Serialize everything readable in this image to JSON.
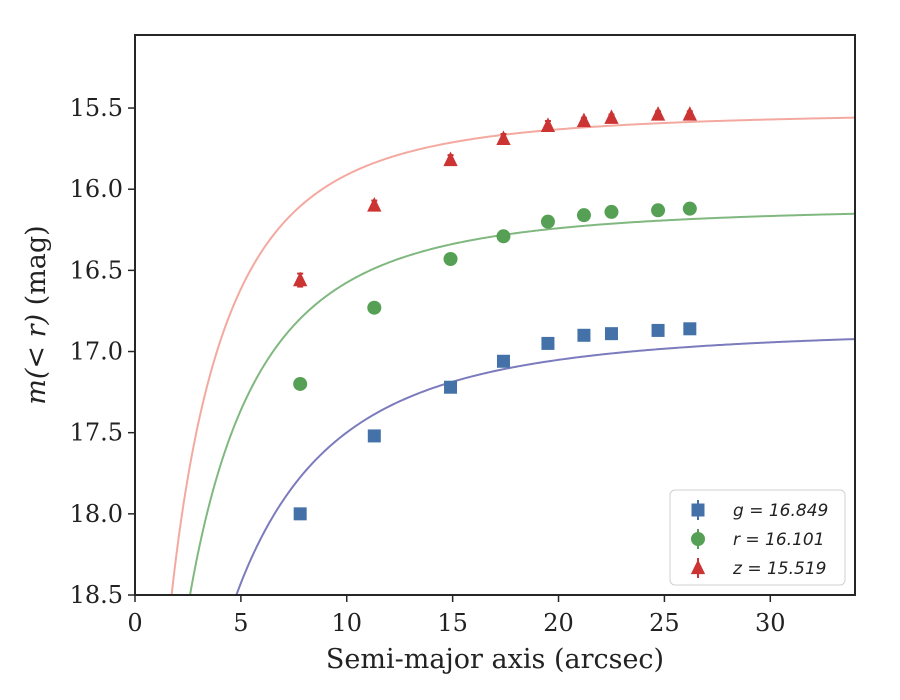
{
  "chart_data": {
    "type": "scatter",
    "title": "",
    "xlabel": "Semi-major axis (arcsec)",
    "ylabel_math": "m(< r)",
    "ylabel_unit": " (mag)",
    "xlim": [
      0,
      34
    ],
    "ylim": [
      18.5,
      15.05
    ],
    "y_inverted": true,
    "grid": false,
    "legend_position": "lower-right",
    "xticks": [
      0,
      5,
      10,
      15,
      20,
      25,
      30
    ],
    "xtick_labels": [
      "0",
      "5",
      "10",
      "15",
      "20",
      "25",
      "30"
    ],
    "yticks": [
      15.5,
      16.0,
      16.5,
      17.0,
      17.5,
      18.0,
      18.5
    ],
    "ytick_labels": [
      "15.5",
      "16.0",
      "16.5",
      "17.0",
      "17.5",
      "18.0",
      "18.5"
    ],
    "x": [
      7.8,
      11.3,
      14.9,
      17.4,
      19.5,
      21.2,
      22.5,
      24.7,
      26.2
    ],
    "series": [
      {
        "name": "g",
        "label": "g = 16.849",
        "marker": "square",
        "marker_color": "#4472a8",
        "curve_color": "#7b7bbd",
        "values": [
          18.0,
          17.52,
          17.22,
          17.06,
          16.95,
          16.9,
          16.89,
          16.87,
          16.86
        ],
        "errors": [
          0.02,
          0.02,
          0.02,
          0.02,
          0.02,
          0.02,
          0.02,
          0.02,
          0.02
        ],
        "asymptote": 16.849,
        "fit_scale": 9.05
      },
      {
        "name": "r",
        "label": "r = 16.101",
        "marker": "circle",
        "marker_color": "#55a055",
        "curve_color": "#80b880",
        "values": [
          17.2,
          16.73,
          16.43,
          16.29,
          16.2,
          16.16,
          16.14,
          16.13,
          16.12
        ],
        "errors": [
          0.03,
          0.02,
          0.02,
          0.02,
          0.02,
          0.02,
          0.02,
          0.02,
          0.02
        ],
        "asymptote": 16.101,
        "fit_scale": 7.4
      },
      {
        "name": "z",
        "label": "z = 15.519",
        "marker": "triangle",
        "marker_color": "#cc3333",
        "curve_color": "#f4a9a0",
        "values": [
          16.56,
          16.1,
          15.82,
          15.69,
          15.61,
          15.58,
          15.56,
          15.54,
          15.54
        ],
        "errors": [
          0.04,
          0.03,
          0.03,
          0.03,
          0.03,
          0.02,
          0.02,
          0.02,
          0.02
        ],
        "asymptote": 15.519,
        "fit_scale": 6.6
      }
    ]
  }
}
